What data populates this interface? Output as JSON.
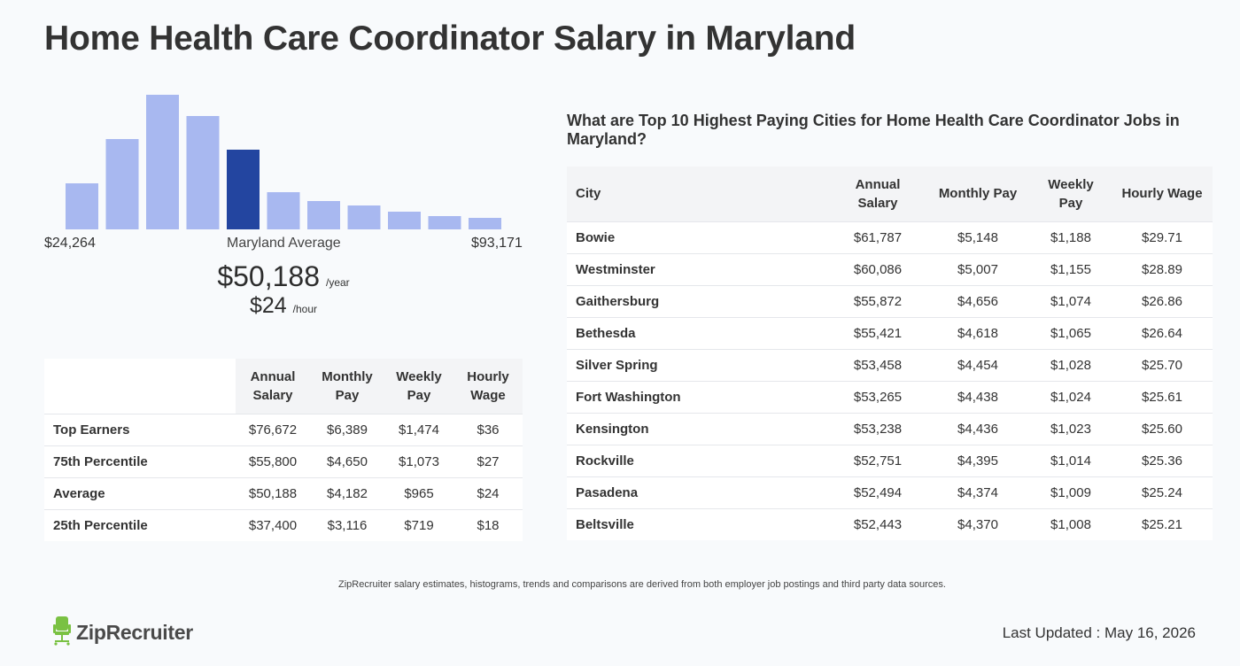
{
  "title": "Home Health Care Coordinator Salary in Maryland",
  "histogram": {
    "min_label": "$24,264",
    "max_label": "$93,171",
    "avg_caption": "Maryland Average",
    "avg_year": "$50,188",
    "avg_year_unit": "/year",
    "avg_hour": "$24",
    "avg_hour_unit": "/hour",
    "colors": {
      "bar": "#a8b8f0",
      "highlight": "#2345a0"
    }
  },
  "chart_data": {
    "type": "bar",
    "categories": [
      "1",
      "2",
      "3",
      "4",
      "5",
      "6",
      "7",
      "8",
      "9",
      "10",
      "11"
    ],
    "values": [
      52,
      102,
      152,
      128,
      90,
      42,
      32,
      27,
      20,
      15,
      13
    ],
    "highlight_index": 4,
    "xlim": [
      "$24,264",
      "$93,171"
    ]
  },
  "percentiles": {
    "headers": [
      "",
      "Annual Salary",
      "Monthly Pay",
      "Weekly Pay",
      "Hourly Wage"
    ],
    "rows": [
      [
        "Top Earners",
        "$76,672",
        "$6,389",
        "$1,474",
        "$36"
      ],
      [
        "75th Percentile",
        "$55,800",
        "$4,650",
        "$1,073",
        "$27"
      ],
      [
        "Average",
        "$50,188",
        "$4,182",
        "$965",
        "$24"
      ],
      [
        "25th Percentile",
        "$37,400",
        "$3,116",
        "$719",
        "$18"
      ]
    ]
  },
  "cities": {
    "heading": "What are Top 10 Highest Paying Cities for Home Health Care Coordinator Jobs in Maryland?",
    "headers": [
      "City",
      "Annual Salary",
      "Monthly Pay",
      "Weekly Pay",
      "Hourly Wage"
    ],
    "rows": [
      [
        "Bowie",
        "$61,787",
        "$5,148",
        "$1,188",
        "$29.71"
      ],
      [
        "Westminster",
        "$60,086",
        "$5,007",
        "$1,155",
        "$28.89"
      ],
      [
        "Gaithersburg",
        "$55,872",
        "$4,656",
        "$1,074",
        "$26.86"
      ],
      [
        "Bethesda",
        "$55,421",
        "$4,618",
        "$1,065",
        "$26.64"
      ],
      [
        "Silver Spring",
        "$53,458",
        "$4,454",
        "$1,028",
        "$25.70"
      ],
      [
        "Fort Washington",
        "$53,265",
        "$4,438",
        "$1,024",
        "$25.61"
      ],
      [
        "Kensington",
        "$53,238",
        "$4,436",
        "$1,023",
        "$25.60"
      ],
      [
        "Rockville",
        "$52,751",
        "$4,395",
        "$1,014",
        "$25.36"
      ],
      [
        "Pasadena",
        "$52,494",
        "$4,374",
        "$1,009",
        "$25.24"
      ],
      [
        "Beltsville",
        "$52,443",
        "$4,370",
        "$1,008",
        "$25.21"
      ]
    ]
  },
  "footer": {
    "note": "ZipRecruiter salary estimates, histograms, trends and comparisons are derived from both employer job postings and third party data sources.",
    "logo_text": "ZipRecruiter",
    "logo_icon": "chair-icon",
    "updated": "Last Updated : May 16, 2026"
  }
}
